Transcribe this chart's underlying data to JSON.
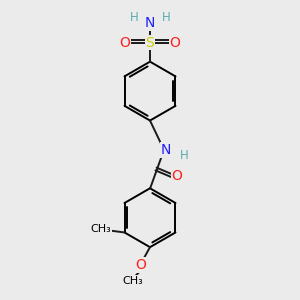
{
  "bg_color": "#ebebeb",
  "atom_colors": {
    "C": "#000000",
    "H": "#5aacac",
    "N": "#2020ff",
    "O": "#ff2020",
    "S": "#cccc00"
  },
  "bond_color": "#1a1a1a",
  "bond_width": 1.4,
  "figsize": [
    3.0,
    3.0
  ],
  "dpi": 100
}
